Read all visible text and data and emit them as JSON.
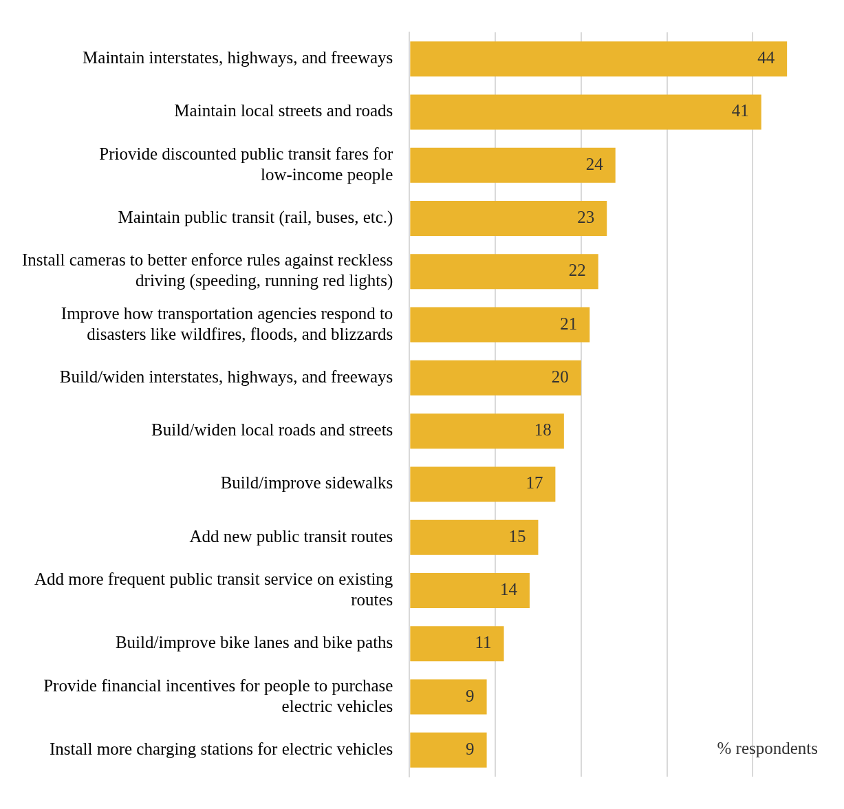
{
  "chart_data": {
    "type": "bar",
    "orientation": "horizontal",
    "categories": [
      "Maintain interstates, highways, and freeways",
      "Maintain local streets and roads",
      "Priovide discounted public transit fares for low-income people",
      "Maintain public transit (rail, buses, etc.)",
      "Install cameras to better enforce rules against reckless driving (speeding, running red lights)",
      "Improve how transportation agencies respond to disasters like wildfires, floods, and blizzards",
      "Build/widen interstates, highways, and freeways",
      "Build/widen local roads and streets",
      "Build/improve sidewalks",
      "Add new public transit routes",
      "Add more frequent public transit service on existing routes",
      "Build/improve bike lanes and bike paths",
      "Provide financial incentives for people to purchase electric vehicles",
      "Install more charging stations for electric vehicles"
    ],
    "values": [
      44,
      41,
      24,
      23,
      22,
      21,
      20,
      18,
      17,
      15,
      14,
      11,
      9,
      9
    ],
    "color": "#ebb52d",
    "data_labels": true,
    "xticks": [
      {
        "value": 0,
        "label": null
      },
      {
        "value": 10,
        "label": null
      },
      {
        "value": 20,
        "label": null
      },
      {
        "value": 30,
        "label": null
      },
      {
        "value": 40,
        "label": null
      }
    ],
    "grid": "x",
    "tick_labels": "y",
    "annotations": [
      "% respondents"
    ]
  }
}
